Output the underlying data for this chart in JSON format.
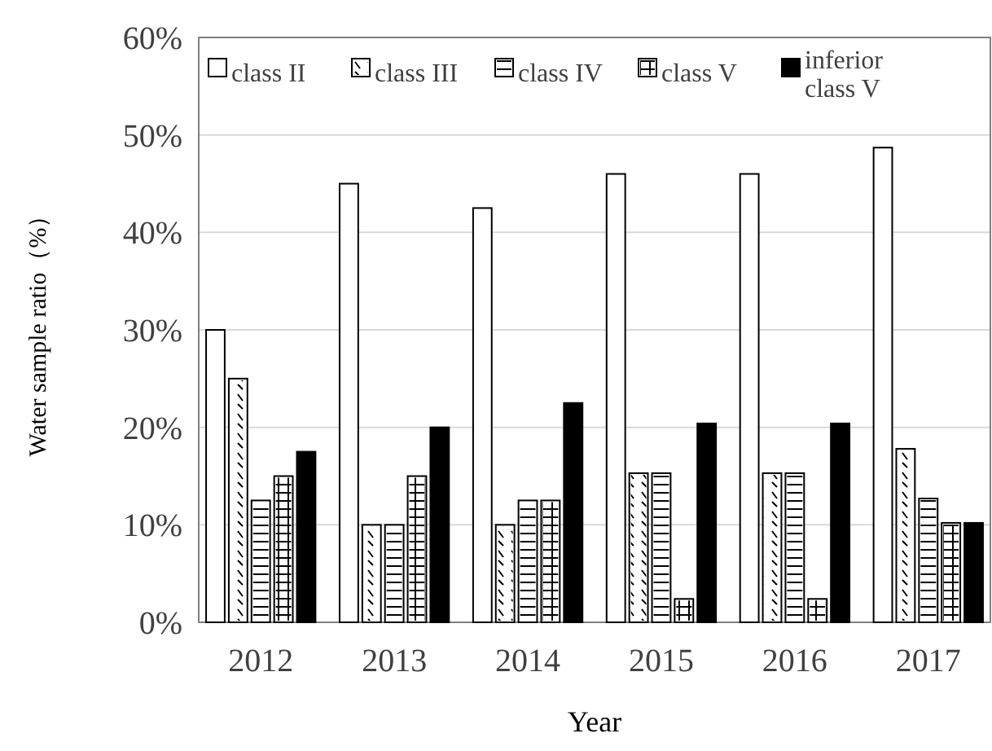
{
  "chart_data": {
    "type": "bar",
    "xlabel": "Year",
    "ylabel": "Water sample ratio（%）",
    "categories": [
      "2012",
      "2013",
      "2014",
      "2015",
      "2016",
      "2017"
    ],
    "series": [
      {
        "name": "class II",
        "color": "#ffffff",
        "values": [
          30,
          45,
          42.5,
          46,
          46,
          48.7
        ]
      },
      {
        "name": "class III",
        "color": "#ffffff",
        "values": [
          25,
          10,
          10,
          15.3,
          15.3,
          17.8
        ]
      },
      {
        "name": "class IV",
        "color": "#ffffff",
        "values": [
          12.5,
          10,
          12.5,
          15.3,
          15.3,
          12.7
        ]
      },
      {
        "name": "class V",
        "color": "#ffffff",
        "values": [
          15,
          15,
          12.5,
          2.4,
          2.4,
          10.2
        ]
      },
      {
        "name": "inferior class V",
        "color": "#000000",
        "values": [
          17.5,
          20,
          22.5,
          20.4,
          20.4,
          10.2
        ]
      }
    ],
    "ylim": [
      0,
      60
    ],
    "yticks": [
      {
        "value": 0,
        "label": "0%"
      },
      {
        "value": 10,
        "label": "10%"
      },
      {
        "value": 20,
        "label": "20%"
      },
      {
        "value": 30,
        "label": "30%"
      },
      {
        "value": 40,
        "label": "40%"
      },
      {
        "value": 50,
        "label": "50%"
      },
      {
        "value": 60,
        "label": "60%"
      }
    ],
    "grid": "y",
    "legend": "top"
  }
}
